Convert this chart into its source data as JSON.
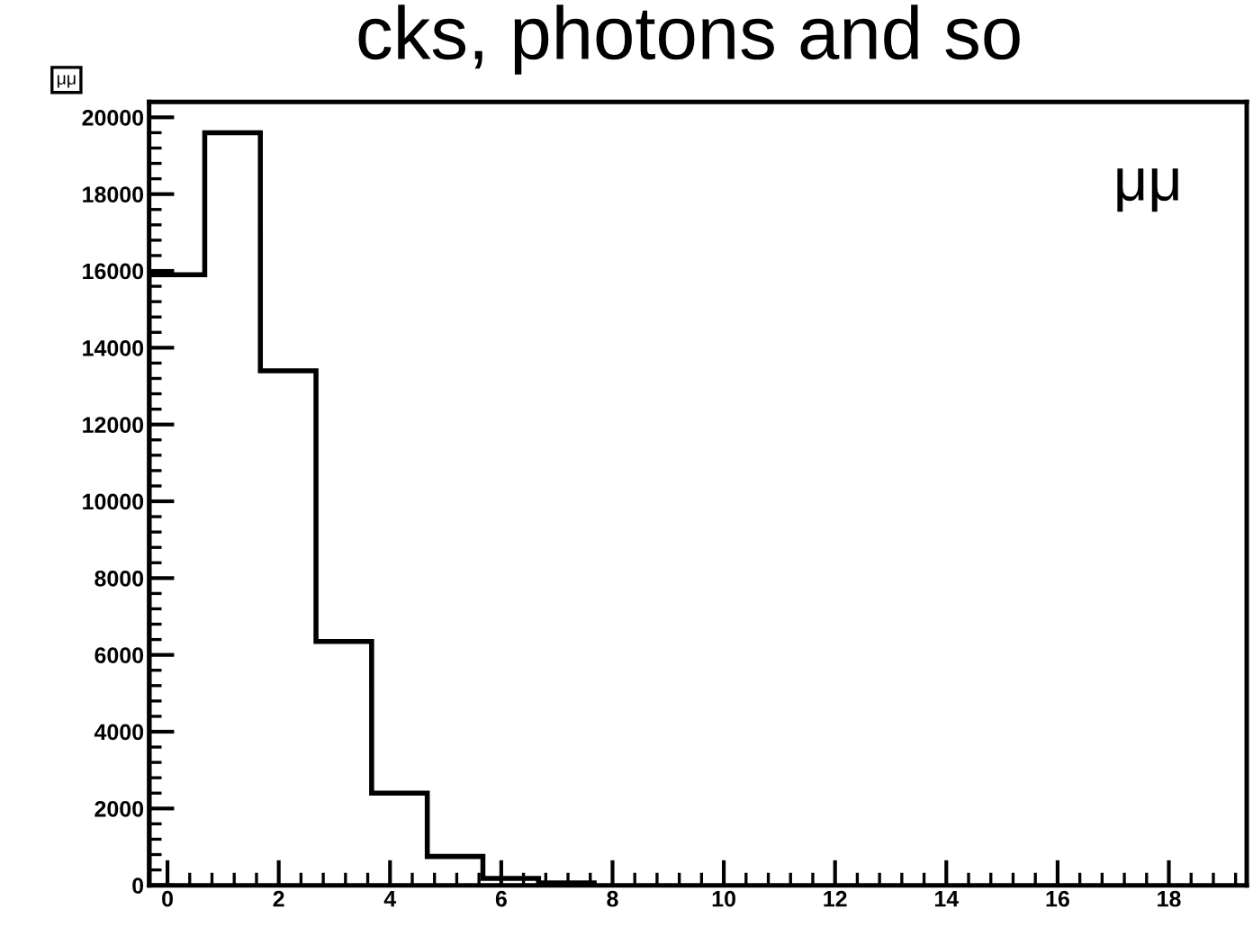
{
  "chart_data": {
    "type": "histogram",
    "title": "μμ",
    "annotations": [
      "cks, photons and so",
      "μμ"
    ],
    "bins": [
      -0.33,
      0.67,
      1.67,
      2.67,
      3.67,
      4.67,
      5.67,
      6.67,
      7.67
    ],
    "values": [
      15900,
      19600,
      13400,
      6350,
      2400,
      750,
      180,
      60
    ],
    "color": "#000000",
    "xlim": [
      -0.33,
      19.4
    ],
    "ylim": [
      0,
      20400
    ],
    "xticks": [
      0,
      2,
      4,
      6,
      8,
      10,
      12,
      14,
      16,
      18
    ],
    "yticks": [
      0,
      2000,
      4000,
      6000,
      8000,
      10000,
      12000,
      14000,
      16000,
      18000,
      20000
    ],
    "grid": false
  }
}
